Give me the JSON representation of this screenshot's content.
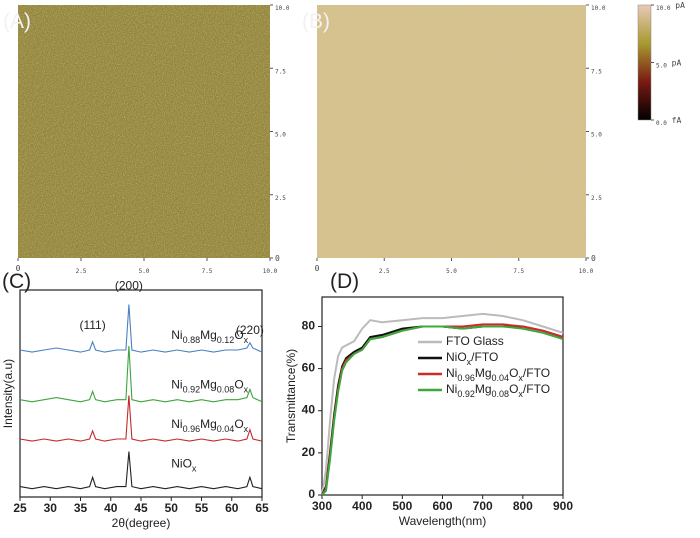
{
  "chart_data": [
    {
      "type": "image",
      "label": "(A)",
      "xlim": [
        0,
        10
      ],
      "ylim": [
        0,
        10
      ],
      "xticks": [
        0,
        2.5,
        {
          "value": 5,
          "label": "5.0"
        },
        7.5,
        {
          "value": 10,
          "label": "10.0"
        }
      ],
      "yticks": [
        0,
        2.5,
        {
          "value": 5,
          "label": "5.0"
        },
        7.5,
        {
          "value": 10,
          "label": "10.0"
        }
      ]
    },
    {
      "type": "image",
      "label": "(B)",
      "xlim": [
        0,
        10
      ],
      "ylim": [
        0,
        10
      ],
      "xticks": [
        0,
        2.5,
        {
          "value": 5,
          "label": "5.0"
        },
        7.5,
        {
          "value": 10,
          "label": "10.0"
        }
      ],
      "yticks": [
        0,
        2.5,
        {
          "value": 5,
          "label": "5.0"
        },
        7.5,
        {
          "value": 10,
          "label": "10.0"
        }
      ],
      "colorbar": {
        "range": [
          0,
          10
        ],
        "colormap": [
          "#000000",
          "#7a1a12",
          "#a89a30",
          "#e9c9b6"
        ],
        "ticks": [
          {
            "value": 10,
            "label": "10.0 pA"
          },
          {
            "value": 5,
            "label": "5.0 pA"
          },
          {
            "value": 0,
            "label": "0.0 fA"
          }
        ]
      }
    },
    {
      "type": "line",
      "label": "(C)",
      "xlabel": "2θ(degree)",
      "ylabel": "Intensity(a.u)",
      "xlim": [
        25,
        65
      ],
      "xticks": [
        25,
        30,
        35,
        40,
        45,
        50,
        55,
        60,
        65
      ],
      "ylim": [
        0,
        10
      ],
      "peak_labels": [
        "(111)",
        "(200)",
        "(220)"
      ],
      "x": [
        25,
        27,
        29,
        31,
        33,
        35,
        36.5,
        37,
        37.5,
        39,
        41,
        42.5,
        43,
        43.5,
        45,
        47,
        49,
        51,
        53,
        55,
        57,
        59,
        61,
        62.5,
        63,
        63.5,
        65
      ],
      "series": [
        {
          "name": "NiOx",
          "color": "#222222",
          "values": [
            0.5,
            0.4,
            0.5,
            0.4,
            0.5,
            0.4,
            0.5,
            0.95,
            0.5,
            0.4,
            0.5,
            0.5,
            2.2,
            0.5,
            0.4,
            0.5,
            0.4,
            0.5,
            0.4,
            0.5,
            0.4,
            0.5,
            0.4,
            0.5,
            0.95,
            0.5,
            0.4
          ]
        },
        {
          "name": "Ni0.96Mg0.04Ox",
          "color": "#c4282e",
          "values": [
            2.8,
            2.7,
            2.8,
            2.7,
            2.8,
            2.7,
            2.8,
            3.2,
            2.8,
            2.7,
            2.8,
            2.8,
            4.9,
            2.8,
            2.7,
            2.8,
            2.7,
            2.8,
            2.7,
            2.8,
            2.7,
            2.8,
            2.7,
            2.8,
            3.25,
            2.8,
            2.7
          ]
        },
        {
          "name": "Ni0.92Mg0.08Ox",
          "color": "#3ea43e",
          "values": [
            4.7,
            4.6,
            4.7,
            4.8,
            4.7,
            4.6,
            4.7,
            5.1,
            4.7,
            4.6,
            4.7,
            4.7,
            7.3,
            4.7,
            4.6,
            4.7,
            4.6,
            4.7,
            4.6,
            4.7,
            4.6,
            4.7,
            4.7,
            4.8,
            5.2,
            4.8,
            4.6
          ]
        },
        {
          "name": "Ni0.88Mg0.12Ox",
          "color": "#4a80c2",
          "values": [
            7.1,
            7.0,
            7.1,
            7.2,
            7.1,
            7.0,
            7.1,
            7.5,
            7.1,
            7.0,
            7.1,
            7.1,
            9.3,
            7.1,
            7.0,
            7.1,
            7.0,
            7.1,
            7.0,
            7.1,
            7.0,
            7.1,
            7.1,
            7.2,
            7.45,
            7.2,
            7.0
          ]
        }
      ]
    },
    {
      "type": "line",
      "label": "(D)",
      "xlabel": "Wavelength(nm)",
      "ylabel": "Transmittance(%)",
      "xlim": [
        300,
        900
      ],
      "xticks": [
        300,
        400,
        500,
        600,
        700,
        800,
        900
      ],
      "ylim": [
        0,
        94
      ],
      "yticks": [
        0,
        20,
        40,
        60,
        80
      ],
      "legend": "upper right",
      "x": [
        300,
        310,
        320,
        330,
        340,
        350,
        360,
        380,
        400,
        420,
        450,
        500,
        550,
        600,
        650,
        700,
        750,
        800,
        850,
        900
      ],
      "series": [
        {
          "name": "FTO Glass",
          "color": "#bbbbbb",
          "values": [
            0,
            12,
            35,
            55,
            66,
            70,
            71,
            73,
            79,
            83,
            82,
            83,
            84,
            84,
            85,
            86,
            85,
            83,
            80,
            77
          ]
        },
        {
          "name": "NiOx/FTO",
          "color": "#111111",
          "values": [
            0,
            4,
            20,
            38,
            52,
            61,
            65,
            68,
            70,
            75,
            76,
            79,
            80,
            80,
            79,
            80,
            80,
            80,
            78,
            75
          ]
        },
        {
          "name": "Ni0.96Mg0.04Ox/FTO",
          "color": "#d02a2a",
          "values": [
            0,
            3,
            18,
            36,
            50,
            60,
            64,
            67,
            69,
            74,
            75,
            78,
            80,
            80,
            80,
            81,
            81,
            80,
            78,
            75
          ]
        },
        {
          "name": "Ni0.92Mg0.08Ox/FTO",
          "color": "#3ca83c",
          "values": [
            0,
            2,
            17,
            35,
            49,
            59,
            63,
            67,
            69,
            74,
            75,
            78,
            80,
            80,
            79,
            80,
            80,
            79,
            77,
            74
          ]
        }
      ]
    }
  ]
}
